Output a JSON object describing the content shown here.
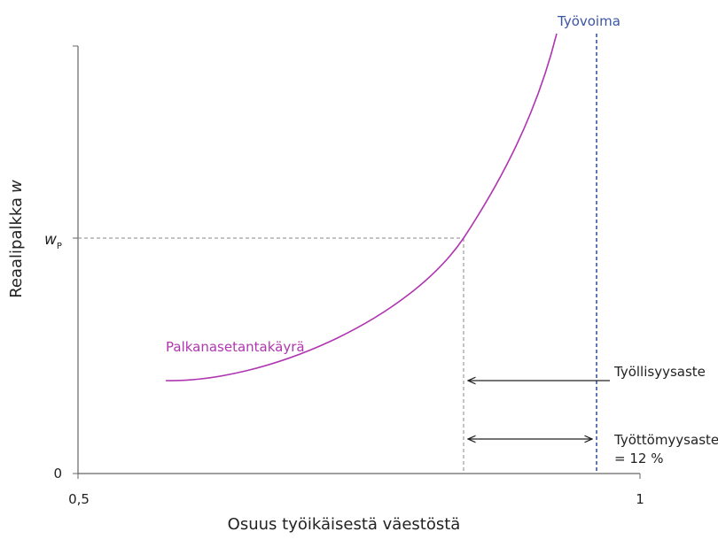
{
  "diagram": {
    "labor_force_label": "Työvoima",
    "wage_curve_label": "Palkanasetantakäyrä",
    "employment_rate_label": "Työllisyysaste",
    "unemployment_rate_label": "Työttömyysaste",
    "unemployment_rate_value": "= 12 %",
    "y_axis_title": "Reaalipalkka",
    "y_axis_var": "w",
    "wage_symbol": "w",
    "wage_subscript": "P",
    "y_origin_label": "0",
    "x_start_label": "0,5",
    "x_end_label": "1",
    "x_axis_title": "Osuus työikäisestä väestöstä"
  }
}
